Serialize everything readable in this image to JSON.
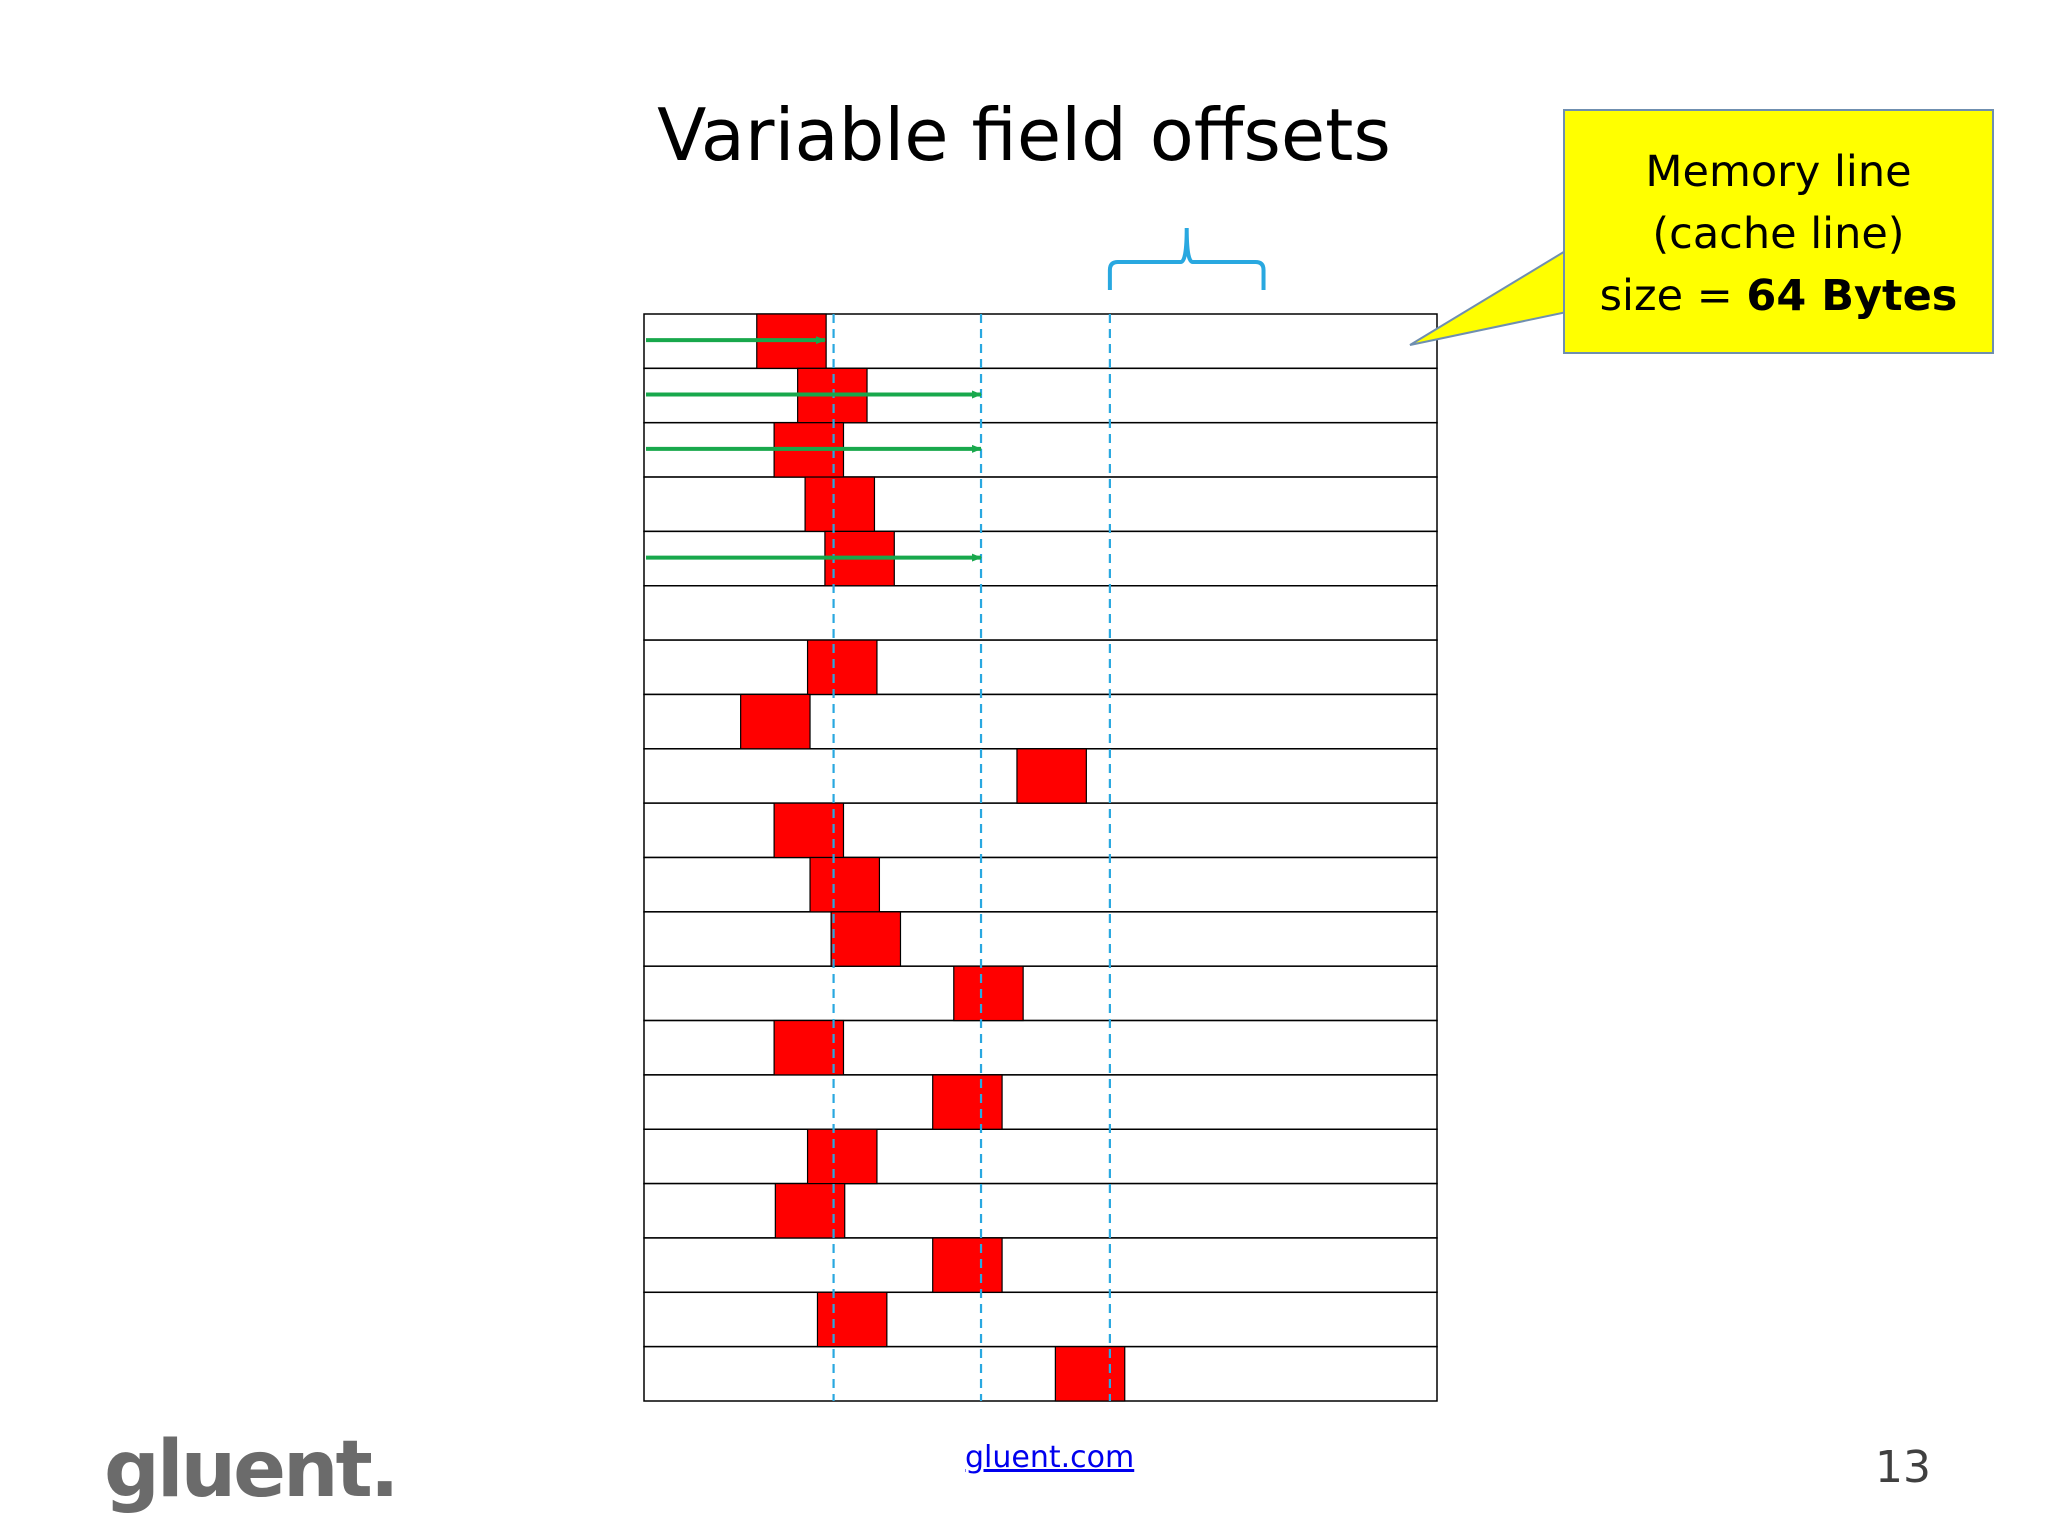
{
  "slide": {
    "title": "Variable field offsets",
    "callout": {
      "line1": "Memory line",
      "line2": "(cache line)",
      "line3_prefix": "size = ",
      "line3_bold": "64 Bytes",
      "fill_color": "#ffff00"
    },
    "footer": {
      "logo": "gluent.",
      "link": "gluent.com",
      "page_number": "13"
    }
  },
  "diagram": {
    "row_count": 20,
    "row_width_units": 64,
    "field_color": "#ff0000",
    "arrow_color": "#18a84c",
    "guide_color": "#29a8e0",
    "bracket_color": "#29a8e0",
    "guide_offsets": [
      15.3,
      27.2,
      37.6
    ],
    "field_width": 5.6,
    "field_offsets": [
      9.1,
      12.4,
      10.5,
      13.0,
      14.6,
      null,
      13.2,
      7.8,
      30.1,
      10.5,
      13.4,
      15.1,
      25.0,
      10.5,
      23.3,
      13.2,
      10.6,
      23.3,
      14.0,
      33.2
    ],
    "arrows": [
      {
        "row": 0,
        "end_offset": 14.6
      },
      {
        "row": 1,
        "end_offset": 27.2
      },
      {
        "row": 2,
        "end_offset": 27.2
      },
      {
        "row": 4,
        "end_offset": 27.2
      }
    ],
    "bracket_span": [
      37.6,
      50
    ]
  }
}
